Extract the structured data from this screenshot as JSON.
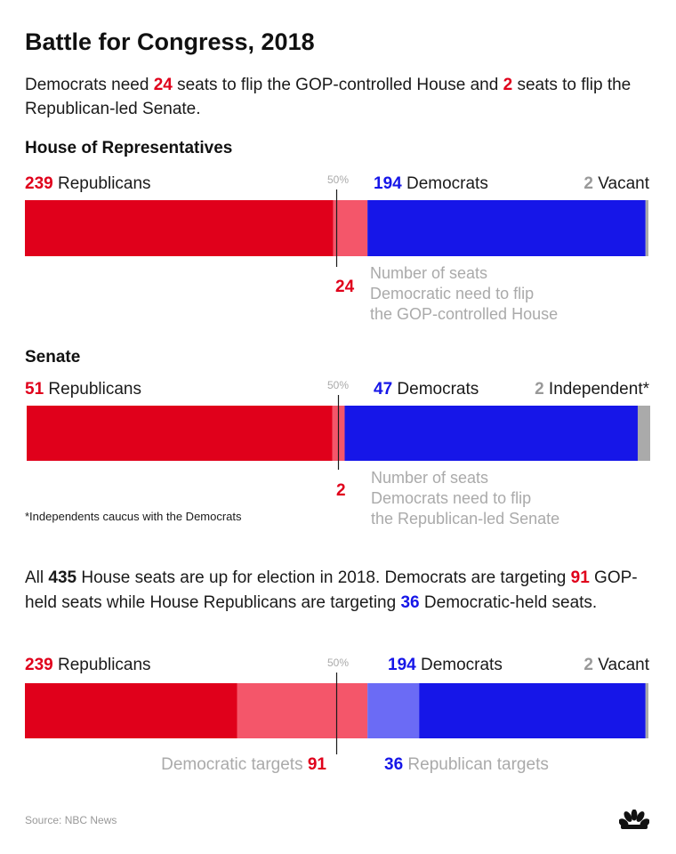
{
  "title": "Battle for Congress, 2018",
  "subtitle": {
    "p1": "Democrats need ",
    "n1": "24",
    "p2": " seats to flip the GOP-controlled House and ",
    "n2": "2",
    "p3": " seats to flip the Republican-led Senate."
  },
  "colors": {
    "republican": "#e0001b",
    "republican_light": "#f4566a",
    "democrat": "#1616e8",
    "democrat_light": "#6b6bf5",
    "other": "#aaaaaa"
  },
  "house": {
    "heading": "House of Representatives",
    "rep_num": "239",
    "rep_label": " Republicans",
    "dem_num": "194",
    "dem_label": " Democrats",
    "other_num": "2",
    "other_label": " Vacant",
    "half_label": "50%",
    "need_num": "24",
    "need_note": [
      "Number of seats",
      "Democratic need to flip",
      "the GOP-controlled House"
    ]
  },
  "senate": {
    "heading": "Senate",
    "rep_num": "51",
    "rep_label": " Republicans",
    "dem_num": "47",
    "dem_label": " Democrats",
    "other_num": "2",
    "other_label": " Independent*",
    "half_label": "50%",
    "need_num": "2",
    "need_note": [
      "Number of seats",
      "Democrats need to flip",
      "the Republican-led Senate"
    ],
    "footnote": "*Independents caucus with the Democrats"
  },
  "paragraph": {
    "p1": "All ",
    "n1": "435",
    "p2": " House seats are up for election in 2018. Democrats are targeting ",
    "n2": "91",
    "p3": " GOP-held seats while House Republicans are targeting ",
    "n3": "36",
    "p4": " Democratic-held seats."
  },
  "targets": {
    "rep_num": "239",
    "rep_label": " Republicans",
    "dem_num": "194",
    "dem_label": " Democrats",
    "other_num": "2",
    "other_label": " Vacant",
    "half_label": "50%",
    "dem_targets_label": "Democratic targets ",
    "dem_targets_num": "91",
    "rep_targets_num": "36",
    "rep_targets_label": " Republican targets"
  },
  "source": "Source: NBC News",
  "chart_data": [
    {
      "type": "bar",
      "orientation": "horizontal-stacked",
      "total": 435,
      "segments": [
        {
          "name": "Republicans",
          "value": 215,
          "color": "#e0001b"
        },
        {
          "name": "Seats Democrats need to flip",
          "value": 24,
          "color": "#f4566a"
        },
        {
          "name": "Democrats",
          "value": 194,
          "color": "#1616e8"
        },
        {
          "name": "Vacant",
          "value": 2,
          "color": "#aaaaaa"
        }
      ],
      "marker": 0.5
    },
    {
      "type": "bar",
      "orientation": "horizontal-stacked",
      "total": 100,
      "segments": [
        {
          "name": "Republicans",
          "value": 49,
          "color": "#e0001b"
        },
        {
          "name": "Seats Democrats need to flip",
          "value": 2,
          "color": "#f4566a"
        },
        {
          "name": "Democrats",
          "value": 47,
          "color": "#1616e8"
        },
        {
          "name": "Independent",
          "value": 2,
          "color": "#aaaaaa"
        }
      ],
      "marker": 0.5
    },
    {
      "type": "bar",
      "orientation": "horizontal-stacked",
      "total": 435,
      "segments": [
        {
          "name": "Republicans",
          "value": 148,
          "color": "#e0001b"
        },
        {
          "name": "Democratic targets",
          "value": 91,
          "color": "#f4566a"
        },
        {
          "name": "Republican targets",
          "value": 36,
          "color": "#6b6bf5"
        },
        {
          "name": "Democrats",
          "value": 158,
          "color": "#1616e8"
        },
        {
          "name": "Vacant",
          "value": 2,
          "color": "#aaaaaa"
        }
      ],
      "marker": 0.5
    }
  ]
}
